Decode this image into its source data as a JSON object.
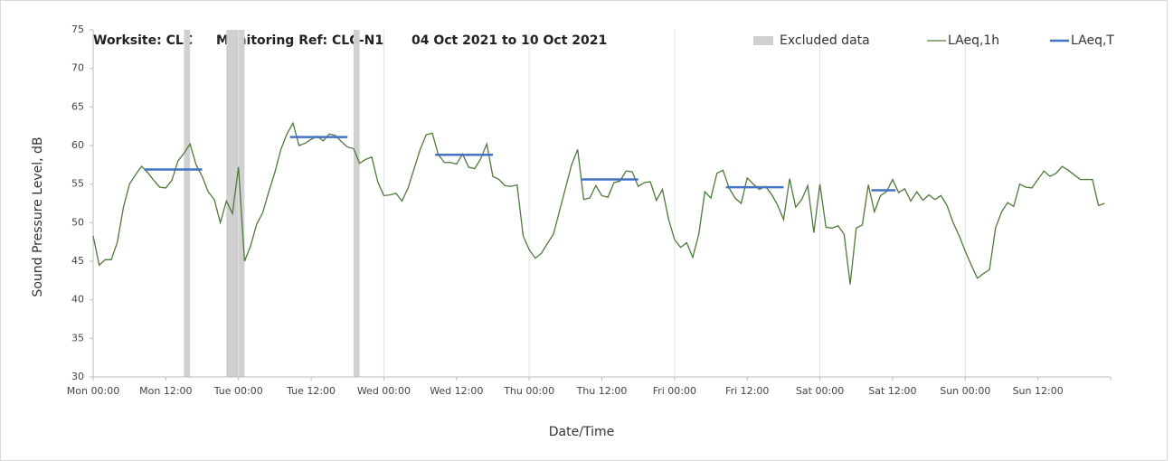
{
  "chart_data": {
    "type": "line",
    "title": [
      "Worksite: CLC",
      "Monitoring Ref: CLC-N1",
      "04 Oct 2021 to 10 Oct 2021"
    ],
    "xlabel": "Date/Time",
    "ylabel": "Sound Pressure Level, dB",
    "xlim": [
      0,
      168
    ],
    "xticks": [
      {
        "value": 0,
        "label": "Mon 00:00"
      },
      {
        "value": 12,
        "label": "Mon 12:00"
      },
      {
        "value": 24,
        "label": "Tue 00:00"
      },
      {
        "value": 36,
        "label": "Tue 12:00"
      },
      {
        "value": 48,
        "label": "Wed 00:00"
      },
      {
        "value": 60,
        "label": "Wed 12:00"
      },
      {
        "value": 72,
        "label": "Thu 00:00"
      },
      {
        "value": 84,
        "label": "Thu 12:00"
      },
      {
        "value": 96,
        "label": "Fri 00:00"
      },
      {
        "value": 108,
        "label": "Fri 12:00"
      },
      {
        "value": 120,
        "label": "Sat 00:00"
      },
      {
        "value": 132,
        "label": "Sat 12:00"
      },
      {
        "value": 144,
        "label": "Sun 00:00"
      },
      {
        "value": 156,
        "label": "Sun 12:00"
      }
    ],
    "ylim": [
      30,
      75
    ],
    "yticks": [
      30,
      35,
      40,
      45,
      50,
      55,
      60,
      65,
      70,
      75
    ],
    "grid": "x",
    "legend": "top-right",
    "series": [
      {
        "name": "Excluded data",
        "kind": "band",
        "color": "#d0d0d0",
        "ranges": [
          [
            15,
            16
          ],
          [
            22,
            25
          ],
          [
            43,
            44
          ]
        ]
      },
      {
        "name": "LAeq,1h",
        "kind": "line",
        "color": "#4e7a3a",
        "x": [
          0,
          1,
          2,
          3,
          4,
          5,
          6,
          7,
          8,
          9,
          10,
          11,
          12,
          13,
          14,
          15,
          16,
          17,
          18,
          19,
          20,
          21,
          22,
          23,
          24,
          25,
          26,
          27,
          28,
          29,
          30,
          31,
          32,
          33,
          34,
          35,
          36,
          37,
          38,
          39,
          40,
          41,
          42,
          43,
          44,
          45,
          46,
          47,
          48,
          49,
          50,
          51,
          52,
          53,
          54,
          55,
          56,
          57,
          58,
          59,
          60,
          61,
          62,
          63,
          64,
          65,
          66,
          67,
          68,
          69,
          70,
          71,
          72,
          73,
          74,
          75,
          76,
          77,
          78,
          79,
          80,
          81,
          82,
          83,
          84,
          85,
          86,
          87,
          88,
          89,
          90,
          91,
          92,
          93,
          94,
          95,
          96,
          97,
          98,
          99,
          100,
          101,
          102,
          103,
          104,
          105,
          106,
          107,
          108,
          109,
          110,
          111,
          112,
          113,
          114,
          115,
          116,
          117,
          118,
          119,
          120,
          121,
          122,
          123,
          124,
          125,
          126,
          127,
          128,
          129,
          130,
          131,
          132,
          133,
          134,
          135,
          136,
          137,
          138,
          139,
          140,
          141,
          142,
          143,
          144,
          145,
          146,
          147,
          148,
          149,
          150,
          151,
          152,
          153,
          154,
          155,
          156,
          157,
          158,
          159,
          160,
          161,
          162,
          163,
          164,
          165,
          166,
          167
        ],
        "values": [
          48.3,
          44.5,
          45.2,
          45.2,
          47.5,
          52,
          55,
          56.2,
          57.3,
          56.5,
          55.5,
          54.6,
          54.5,
          55.5,
          58,
          59,
          60.2,
          57.5,
          56,
          54,
          53,
          50,
          52.8,
          51.2,
          57.2,
          45,
          47,
          49.8,
          51.3,
          54,
          56.5,
          59.5,
          61.5,
          62.9,
          60,
          60.3,
          60.8,
          61.2,
          60.6,
          61.5,
          61.3,
          60.5,
          59.8,
          59.6,
          57.7,
          58.2,
          58.5,
          55.3,
          53.5,
          53.6,
          53.8,
          52.8,
          54.5,
          57,
          59.5,
          61.4,
          61.6,
          58.8,
          57.8,
          57.8,
          57.6,
          58.9,
          57.2,
          57,
          58.3,
          60.2,
          56,
          55.6,
          54.8,
          54.7,
          54.9,
          48.3,
          46.5,
          45.4,
          46,
          47.3,
          48.5,
          51.5,
          54.5,
          57.5,
          59.5,
          53,
          53.2,
          54.8,
          53.5,
          53.3,
          55.2,
          55.4,
          56.7,
          56.6,
          54.7,
          55.2,
          55.3,
          52.9,
          54.3,
          50.5,
          47.8,
          46.8,
          47.4,
          45.5,
          48.5,
          54,
          53.2,
          56.4,
          56.8,
          54.5,
          53.2,
          52.5,
          55.8,
          55,
          54.3,
          54.7,
          53.7,
          52.3,
          50.4,
          55.7,
          52,
          53,
          54.8,
          48.7,
          55,
          49.4,
          49.3,
          49.6,
          48.5,
          42,
          49.3,
          49.7,
          54.9,
          51.4,
          53.5,
          54,
          55.6,
          53.9,
          54.4,
          52.8,
          54,
          52.9,
          53.6,
          53,
          53.5,
          52.2,
          50,
          48.3,
          46.3,
          44.5,
          42.8,
          43.4,
          43.9,
          49.3,
          51.4,
          52.6,
          52.1,
          55,
          54.6,
          54.5,
          55.6,
          56.7,
          56,
          56.4,
          57.3,
          56.8,
          56.2,
          55.6,
          55.6,
          55.6,
          52.2,
          52.5
        ]
      },
      {
        "name": "LAeq,T",
        "kind": "segments",
        "color": "#4472c4",
        "ranges": [
          [
            8.5,
            18
          ],
          [
            32.5,
            42
          ],
          [
            56.5,
            66
          ],
          [
            80.5,
            90
          ],
          [
            104.5,
            114
          ],
          [
            128.5,
            132.5
          ]
        ],
        "values": [
          56.9,
          61.1,
          58.8,
          55.6,
          54.6,
          54.2
        ]
      }
    ]
  }
}
